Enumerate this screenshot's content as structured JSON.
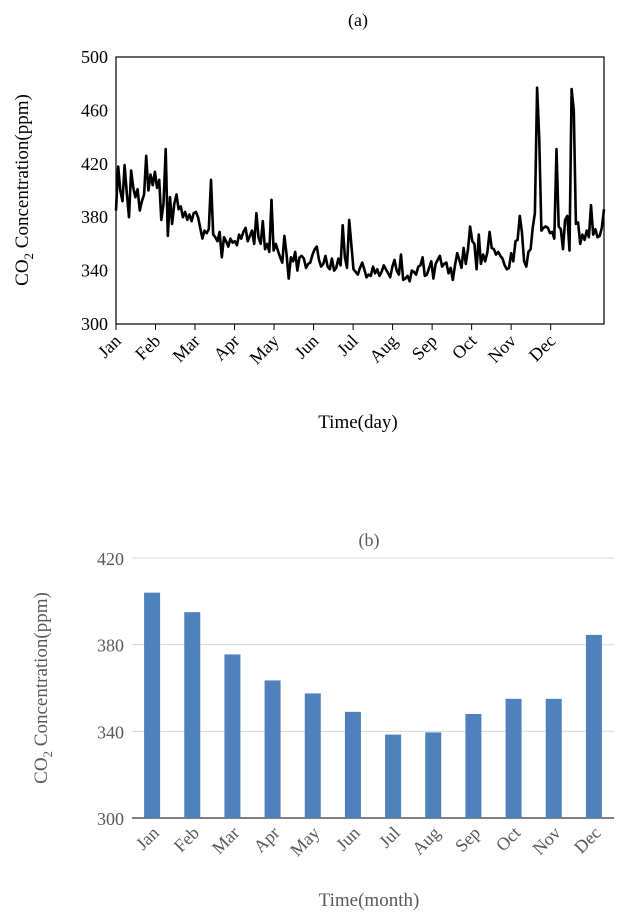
{
  "chart_data": [
    {
      "panel": "(a)",
      "type": "line",
      "xlabel": "Time(day)",
      "ylabel_main": "CO",
      "ylabel_sub": "2",
      "ylabel_rest": " Concentration(ppm)",
      "ylim": [
        300,
        500
      ],
      "yticks": [
        300,
        340,
        380,
        420,
        460,
        500
      ],
      "month_labels": [
        "Jan",
        "Feb",
        "Mar",
        "Apr",
        "May",
        "Jun",
        "Jul",
        "Aug",
        "Sep",
        "Oct",
        "Nov",
        "Dec"
      ],
      "color": "#000000",
      "series": [
        {
          "values": [
            385,
            418,
            400,
            392,
            419,
            398,
            380,
            415,
            402,
            395,
            401,
            385,
            392,
            397,
            426,
            400,
            412,
            404,
            414,
            402,
            408,
            378,
            390,
            431,
            366,
            395,
            375,
            390,
            397,
            386,
            388,
            380,
            384,
            378,
            382,
            377,
            383,
            384,
            380,
            372,
            364,
            370,
            368,
            371,
            408,
            367,
            365,
            362,
            369,
            350,
            365,
            362,
            358,
            364,
            361,
            362,
            359,
            367,
            364,
            369,
            372,
            362,
            366,
            370,
            360,
            383,
            365,
            360,
            377,
            356,
            360,
            354,
            393,
            355,
            360,
            355,
            350,
            346,
            366,
            352,
            334,
            350,
            347,
            354,
            340,
            350,
            351,
            349,
            342,
            345,
            346,
            352,
            356,
            358,
            348,
            343,
            345,
            351,
            343,
            341,
            349,
            340,
            342,
            349,
            344,
            374,
            350,
            342,
            378,
            359,
            341,
            339,
            337,
            342,
            346,
            341,
            335,
            337,
            336,
            343,
            338,
            341,
            336,
            339,
            344,
            341,
            338,
            335,
            343,
            348,
            340,
            337,
            352,
            333,
            334,
            336,
            332,
            340,
            339,
            337,
            343,
            344,
            350,
            336,
            337,
            342,
            347,
            334,
            345,
            348,
            351,
            343,
            345,
            346,
            338,
            342,
            333,
            344,
            353,
            348,
            342,
            357,
            345,
            356,
            373,
            362,
            360,
            341,
            367,
            345,
            352,
            347,
            354,
            369,
            357,
            356,
            352,
            354,
            351,
            349,
            344,
            341,
            342,
            353,
            347,
            362,
            363,
            381,
            369,
            347,
            343,
            354,
            356,
            372,
            383,
            477,
            440,
            370,
            372,
            373,
            372,
            368,
            369,
            364,
            431,
            373,
            371,
            356,
            378,
            381,
            355,
            476,
            460,
            375,
            376,
            360,
            367,
            363,
            370,
            365,
            389,
            367,
            371,
            365,
            366,
            372,
            386
          ]
        }
      ]
    },
    {
      "panel": "(b)",
      "type": "bar",
      "xlabel": "Time(month)",
      "ylabel_main": "CO",
      "ylabel_sub": "2",
      "ylabel_rest": " Concentration(ppm)",
      "ylim": [
        300,
        420
      ],
      "yticks": [
        300,
        340,
        380,
        420
      ],
      "categories": [
        "Jan",
        "Feb",
        "Mar",
        "Apr",
        "May",
        "Jun",
        "Jul",
        "Aug",
        "Sep",
        "Oct",
        "Nov",
        "Dec"
      ],
      "color": "#4f81bd",
      "series": [
        {
          "values": [
            404,
            395,
            375.5,
            363.5,
            357.5,
            349,
            338.5,
            339.5,
            348,
            355,
            355,
            384.5
          ]
        }
      ]
    }
  ]
}
